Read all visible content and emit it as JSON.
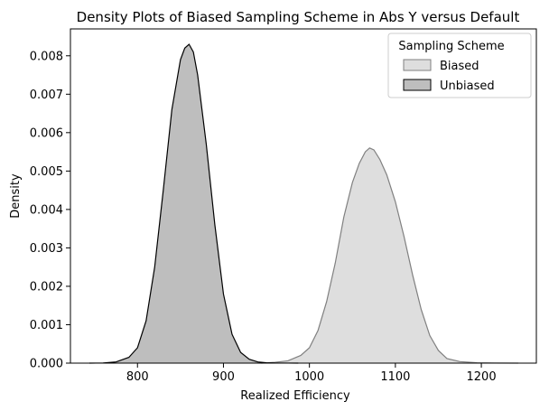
{
  "chart_data": {
    "type": "area",
    "title": "Density Plots of Biased Sampling Scheme in Abs Y versus Default",
    "xlabel": "Realized Efficiency",
    "ylabel": "Density",
    "xlim": [
      722,
      1264
    ],
    "ylim": [
      0,
      0.0087
    ],
    "x_ticks": [
      800,
      900,
      1000,
      1100,
      1200
    ],
    "x_tick_labels": [
      "800",
      "900",
      "1000",
      "1100",
      "1200"
    ],
    "y_ticks": [
      0,
      0.001,
      0.002,
      0.003,
      0.004,
      0.005,
      0.006,
      0.007,
      0.008
    ],
    "y_tick_labels": [
      "0.000",
      "0.001",
      "0.002",
      "0.003",
      "0.004",
      "0.005",
      "0.006",
      "0.007",
      "0.008"
    ],
    "grid": false,
    "legend": {
      "title": "Sampling Scheme",
      "placement": "top-right"
    },
    "series": [
      {
        "name": "Biased",
        "fill": "#dedede",
        "stroke": "#808080",
        "x": [
          944,
          960,
          975,
          990,
          1000,
          1010,
          1020,
          1030,
          1040,
          1050,
          1058,
          1065,
          1070,
          1075,
          1082,
          1090,
          1100,
          1110,
          1120,
          1130,
          1140,
          1150,
          1160,
          1175,
          1195,
          1215,
          1243
        ],
        "y": [
          0,
          2e-05,
          6e-05,
          0.0002,
          0.0004,
          0.00085,
          0.0016,
          0.0026,
          0.0038,
          0.0047,
          0.0052,
          0.0055,
          0.0056,
          0.00555,
          0.0053,
          0.0049,
          0.0042,
          0.0033,
          0.0023,
          0.0014,
          0.00072,
          0.00033,
          0.00012,
          4e-05,
          1e-05,
          2e-06,
          0
        ]
      },
      {
        "name": "Unbiased",
        "fill": "#bebebe",
        "stroke": "#000000",
        "x": [
          744,
          760,
          775,
          790,
          800,
          810,
          820,
          830,
          840,
          850,
          855,
          860,
          865,
          870,
          880,
          890,
          900,
          910,
          920,
          930,
          940,
          950,
          960,
          975,
          987
        ],
        "y": [
          0,
          5e-06,
          3e-05,
          0.00015,
          0.0004,
          0.0011,
          0.0025,
          0.0045,
          0.0066,
          0.0079,
          0.0082,
          0.0083,
          0.0081,
          0.0075,
          0.0057,
          0.0036,
          0.0018,
          0.00075,
          0.00028,
          0.0001,
          3e-05,
          1e-05,
          3e-06,
          1e-06,
          0
        ]
      }
    ]
  }
}
